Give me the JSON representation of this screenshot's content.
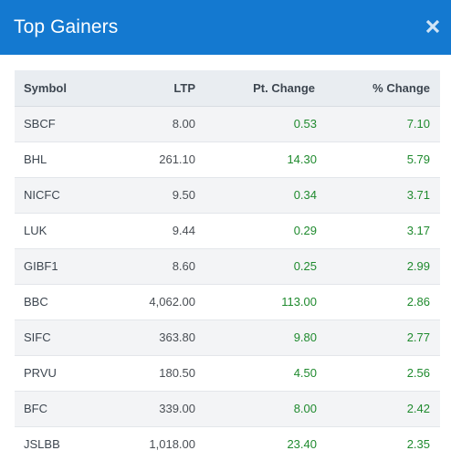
{
  "modal": {
    "title": "Top Gainers",
    "close_icon": "close-icon"
  },
  "colors": {
    "header_bg": "#1479d0",
    "gain_text": "#1f8a2e",
    "row_alt_bg": "#f3f4f6",
    "table_header_bg": "#e9edf1"
  },
  "table": {
    "headers": {
      "symbol": "Symbol",
      "ltp": "LTP",
      "pt_change": "Pt. Change",
      "pct_change": "% Change"
    },
    "rows": [
      {
        "symbol": "SBCF",
        "ltp": "8.00",
        "pt_change": "0.53",
        "pct_change": "7.10"
      },
      {
        "symbol": "BHL",
        "ltp": "261.10",
        "pt_change": "14.30",
        "pct_change": "5.79"
      },
      {
        "symbol": "NICFC",
        "ltp": "9.50",
        "pt_change": "0.34",
        "pct_change": "3.71"
      },
      {
        "symbol": "LUK",
        "ltp": "9.44",
        "pt_change": "0.29",
        "pct_change": "3.17"
      },
      {
        "symbol": "GIBF1",
        "ltp": "8.60",
        "pt_change": "0.25",
        "pct_change": "2.99"
      },
      {
        "symbol": "BBC",
        "ltp": "4,062.00",
        "pt_change": "113.00",
        "pct_change": "2.86"
      },
      {
        "symbol": "SIFC",
        "ltp": "363.80",
        "pt_change": "9.80",
        "pct_change": "2.77"
      },
      {
        "symbol": "PRVU",
        "ltp": "180.50",
        "pt_change": "4.50",
        "pct_change": "2.56"
      },
      {
        "symbol": "BFC",
        "ltp": "339.00",
        "pt_change": "8.00",
        "pct_change": "2.42"
      },
      {
        "symbol": "JSLBB",
        "ltp": "1,018.00",
        "pt_change": "23.40",
        "pct_change": "2.35"
      }
    ]
  }
}
